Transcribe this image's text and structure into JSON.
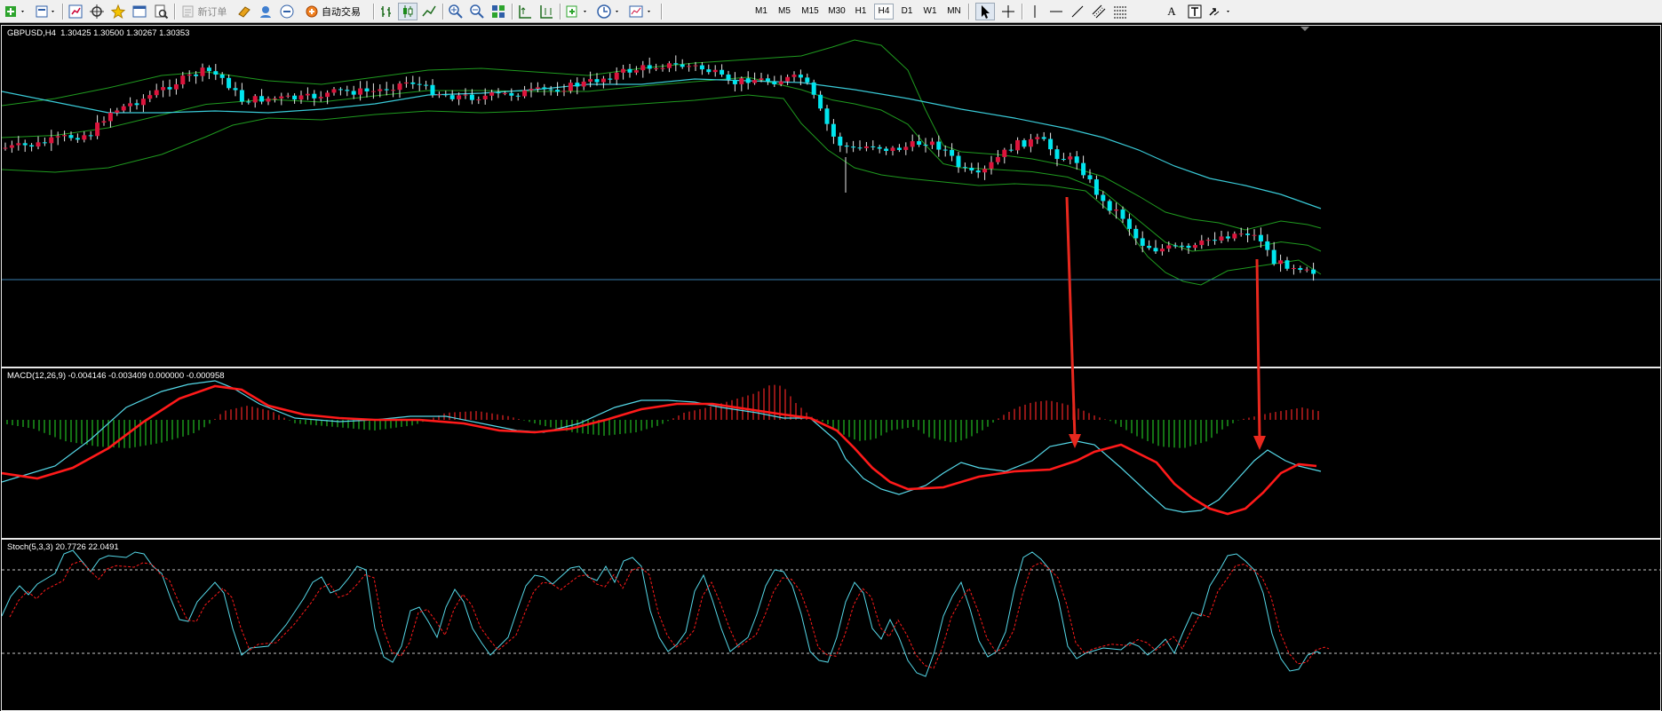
{
  "toolbar": {
    "new_order_label": "新订单",
    "auto_trade_label": "自动交易",
    "timeframes": [
      "M1",
      "M5",
      "M15",
      "M30",
      "H1",
      "H4",
      "D1",
      "W1",
      "MN"
    ],
    "active_timeframe": "H4",
    "text_tool_label": "A"
  },
  "main_pane": {
    "header": "GBPUSD,H4  1.30425 1.30500 1.30267 1.30353"
  },
  "macd_pane": {
    "header": "MACD(12,26,9) -0.004146 -0.003409 0.000000 -0.000958"
  },
  "stoch_pane": {
    "header": "Stoch(5,3,3) 20.7726 22.0491"
  },
  "colors": {
    "bull_candle": "#dc143c",
    "bear_candle": "#00e5ee",
    "bollinger": "#1f9a1f",
    "moving_average": "#39c9d6",
    "macd_signal": "#ff1a1a",
    "macd_line": "#55d8e8",
    "histogram_up": "#dd2222",
    "histogram_down": "#1fae1f",
    "arrow": "#e8281e"
  }
}
